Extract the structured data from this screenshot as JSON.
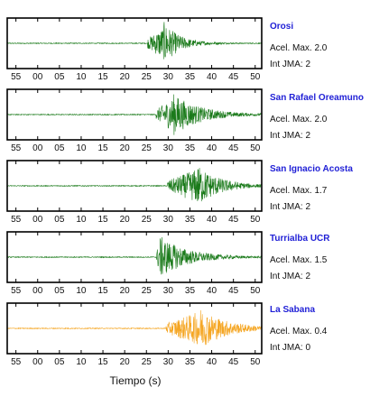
{
  "figure": {
    "xlabel": "Tiempo (s)"
  },
  "colors": {
    "axes": "#000000",
    "station_name": "#1f1fd6",
    "trace_green": "#1a7a1a",
    "trace_orange": "#f5a623"
  },
  "chart_data": [
    {
      "type": "line",
      "station": "Orosi",
      "acel_label": "Acel. Max. 2.0",
      "jma_label": "Int JMA: 2",
      "color": "#1a7a1a",
      "x_tick_labels": [
        "55",
        "00",
        "05",
        "10",
        "15",
        "20",
        "25",
        "30",
        "35",
        "40",
        "45",
        "50"
      ],
      "xlim": [
        53,
        51.5
      ],
      "onset": 25.3,
      "peak_time": 29,
      "peak": 0.95,
      "decay": 3.5,
      "noise": 0.02
    },
    {
      "type": "line",
      "station": "San Rafael Oreamuno",
      "acel_label": "Acel. Max. 2.0",
      "jma_label": "Int JMA: 2",
      "color": "#1a7a1a",
      "x_tick_labels": [
        "55",
        "00",
        "05",
        "10",
        "15",
        "20",
        "25",
        "30",
        "35",
        "40",
        "45",
        "50"
      ],
      "xlim": [
        53,
        51.5
      ],
      "onset": 27.2,
      "peak_time": 31,
      "peak": 0.95,
      "decay": 6,
      "noise": 0.02
    },
    {
      "type": "line",
      "station": "San Ignacio Acosta",
      "acel_label": "Acel. Max. 1.7",
      "jma_label": "Int JMA: 2",
      "color": "#1a7a1a",
      "x_tick_labels": [
        "55",
        "00",
        "05",
        "10",
        "15",
        "20",
        "25",
        "30",
        "35",
        "40",
        "45",
        "50"
      ],
      "xlim": [
        53,
        51.5
      ],
      "onset": 29.8,
      "peak_time": 36.5,
      "peak": 0.95,
      "decay": 5,
      "noise": 0.02
    },
    {
      "type": "line",
      "station": "Turrialba UCR",
      "acel_label": "Acel. Max. 1.5",
      "jma_label": "Int JMA: 2",
      "color": "#1a7a1a",
      "x_tick_labels": [
        "55",
        "00",
        "05",
        "10",
        "15",
        "20",
        "25",
        "30",
        "35",
        "40",
        "45",
        "50"
      ],
      "xlim": [
        53,
        51.5
      ],
      "onset": 27.3,
      "peak_time": 28,
      "peak": 0.95,
      "decay": 6,
      "noise": 0.02
    },
    {
      "type": "line",
      "station": "La Sabana",
      "acel_label": "Acel. Max. 0.4",
      "jma_label": "Int JMA: 0",
      "color": "#f5a623",
      "x_tick_labels": [
        "55",
        "00",
        "05",
        "10",
        "15",
        "20",
        "25",
        "30",
        "35",
        "40",
        "45",
        "50"
      ],
      "xlim": [
        53,
        51.5
      ],
      "onset": 29.5,
      "peak_time": 37,
      "peak": 0.95,
      "decay": 6,
      "noise": 0.02
    }
  ]
}
